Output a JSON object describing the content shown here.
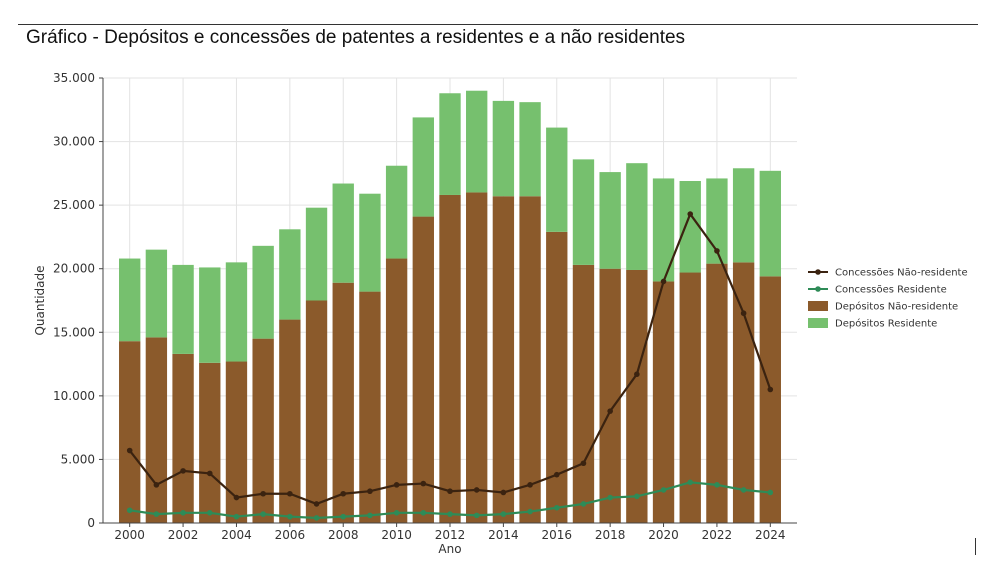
{
  "title": "Gráfico - Depósitos e concessões de patentes a residentes e a não residentes",
  "chart_data": {
    "type": "bar",
    "stacked": true,
    "title": "Gráfico - Depósitos e concessões de patentes a residentes e a não residentes",
    "xlabel": "Ano",
    "ylabel": "Quantidade",
    "ylim": [
      0,
      35000
    ],
    "grid": true,
    "legend_position": "right",
    "categories": [
      2000,
      2001,
      2002,
      2003,
      2004,
      2005,
      2006,
      2007,
      2008,
      2009,
      2010,
      2011,
      2012,
      2013,
      2014,
      2015,
      2016,
      2017,
      2018,
      2019,
      2020,
      2021,
      2022,
      2023,
      2024
    ],
    "x_tick_labels": [
      "2000",
      "2002",
      "2004",
      "2006",
      "2008",
      "2010",
      "2012",
      "2014",
      "2016",
      "2018",
      "2020",
      "2022",
      "2024"
    ],
    "y_ticks": [
      0,
      5000,
      10000,
      15000,
      20000,
      25000,
      30000,
      35000
    ],
    "y_tick_labels": [
      "0",
      "5.000",
      "10.000",
      "15.000",
      "20.000",
      "25.000",
      "30.000",
      "35.000"
    ],
    "series": [
      {
        "name": "Depósitos Não-residente",
        "kind": "bar",
        "color": "#8b5a2b",
        "values": [
          14300,
          14600,
          13300,
          12600,
          12700,
          14500,
          16000,
          17500,
          18900,
          18200,
          20800,
          24100,
          25800,
          26000,
          25700,
          25700,
          22900,
          20300,
          20000,
          19900,
          19000,
          19700,
          20400,
          20500,
          19400
        ]
      },
      {
        "name": "Depósitos Residente",
        "kind": "bar",
        "color": "#76c06e",
        "values": [
          6500,
          6900,
          7000,
          7500,
          7800,
          7300,
          7100,
          7300,
          7800,
          7700,
          7300,
          7800,
          8000,
          8000,
          7500,
          7400,
          8200,
          8300,
          7600,
          8400,
          8100,
          7200,
          6700,
          7400,
          8300
        ]
      },
      {
        "name": "Concessões Não-residente",
        "kind": "line",
        "color": "#3b2310",
        "values": [
          5700,
          3000,
          4100,
          3900,
          2000,
          2300,
          2300,
          1500,
          2300,
          2500,
          3000,
          3100,
          2500,
          2600,
          2400,
          3000,
          3800,
          4700,
          8800,
          11700,
          19000,
          24300,
          21400,
          16500,
          10500
        ]
      },
      {
        "name": "Concessões Residente",
        "kind": "line",
        "color": "#2e8b57",
        "values": [
          1000,
          700,
          800,
          800,
          500,
          700,
          500,
          400,
          500,
          600,
          800,
          800,
          700,
          600,
          700,
          900,
          1200,
          1500,
          2000,
          2100,
          2600,
          3200,
          3000,
          2600,
          2400
        ]
      }
    ],
    "legend_order": [
      "Concessões Não-residente",
      "Concessões Residente",
      "Depósitos Não-residente",
      "Depósitos Residente"
    ]
  }
}
